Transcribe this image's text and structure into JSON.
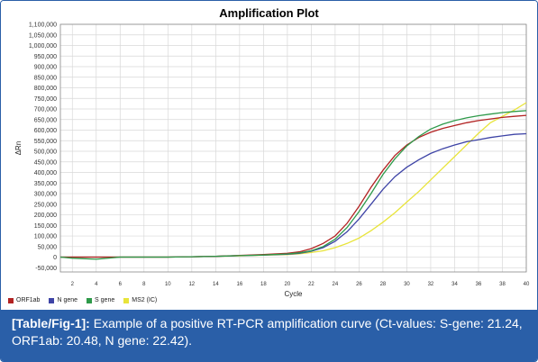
{
  "caption": {
    "tag": "[Table/Fig-1]:",
    "text": "Example of a positive RT-PCR amplification curve (Ct-values: S-gene: 21.24, ORF1ab: 20.48, N gene: 22.42)."
  },
  "chart_data": {
    "type": "line",
    "title": "Amplification Plot",
    "xlabel": "Cycle",
    "ylabel": "ΔRn",
    "xlim": [
      1,
      40
    ],
    "ylim": [
      -70000,
      1100000
    ],
    "x_ticks": [
      2,
      4,
      6,
      8,
      10,
      12,
      14,
      16,
      18,
      20,
      22,
      24,
      26,
      28,
      30,
      32,
      34,
      36,
      38,
      40
    ],
    "y_ticks": [
      -50000,
      0,
      50000,
      100000,
      150000,
      200000,
      250000,
      300000,
      350000,
      400000,
      450000,
      500000,
      550000,
      600000,
      650000,
      700000,
      750000,
      800000,
      850000,
      900000,
      950000,
      1000000,
      1050000,
      1100000
    ],
    "y_tick_labels": [
      "-50,000",
      "0",
      "50,000",
      "100,000",
      "150,000",
      "200,000",
      "250,000",
      "300,000",
      "350,000",
      "400,000",
      "450,000",
      "500,000",
      "550,000",
      "600,000",
      "650,000",
      "700,000",
      "750,000",
      "800,000",
      "850,000",
      "900,000",
      "950,000",
      "1,000,000",
      "1,050,000",
      "1,100,000"
    ],
    "grid": true,
    "legend_position": "bottom-left",
    "x": [
      1,
      2,
      4,
      6,
      8,
      10,
      12,
      14,
      16,
      18,
      20,
      21,
      22,
      23,
      24,
      25,
      26,
      27,
      28,
      29,
      30,
      31,
      32,
      33,
      34,
      35,
      36,
      37,
      38,
      39,
      40
    ],
    "series": [
      {
        "name": "ORF1ab",
        "color": "#b22222",
        "values": [
          0,
          0,
          0,
          0,
          0,
          0,
          2000,
          4000,
          8000,
          12000,
          18000,
          25000,
          40000,
          65000,
          100000,
          160000,
          240000,
          330000,
          410000,
          480000,
          530000,
          565000,
          590000,
          608000,
          622000,
          635000,
          645000,
          653000,
          660000,
          665000,
          670000
        ]
      },
      {
        "name": "N gene",
        "color": "#3e44a6",
        "values": [
          0,
          0,
          0,
          0,
          0,
          0,
          2000,
          4000,
          7000,
          10000,
          14000,
          18000,
          28000,
          45000,
          75000,
          120000,
          180000,
          250000,
          320000,
          380000,
          425000,
          460000,
          490000,
          512000,
          530000,
          545000,
          555000,
          565000,
          573000,
          580000,
          583000
        ]
      },
      {
        "name": "S gene",
        "color": "#2e9a4a",
        "values": [
          0,
          -5000,
          -10000,
          0,
          0,
          0,
          2000,
          4000,
          7000,
          10000,
          15000,
          20000,
          30000,
          50000,
          85000,
          140000,
          215000,
          300000,
          390000,
          465000,
          525000,
          570000,
          605000,
          628000,
          645000,
          658000,
          668000,
          676000,
          683000,
          688000,
          692000
        ]
      },
      {
        "name": "MS2 (IC)",
        "color": "#e8e43a",
        "values": [
          0,
          0,
          0,
          0,
          0,
          0,
          2000,
          4000,
          6000,
          9000,
          12000,
          16000,
          22000,
          30000,
          45000,
          65000,
          90000,
          125000,
          165000,
          210000,
          260000,
          310000,
          365000,
          420000,
          475000,
          530000,
          585000,
          635000,
          665000,
          695000,
          730000
        ]
      }
    ]
  }
}
